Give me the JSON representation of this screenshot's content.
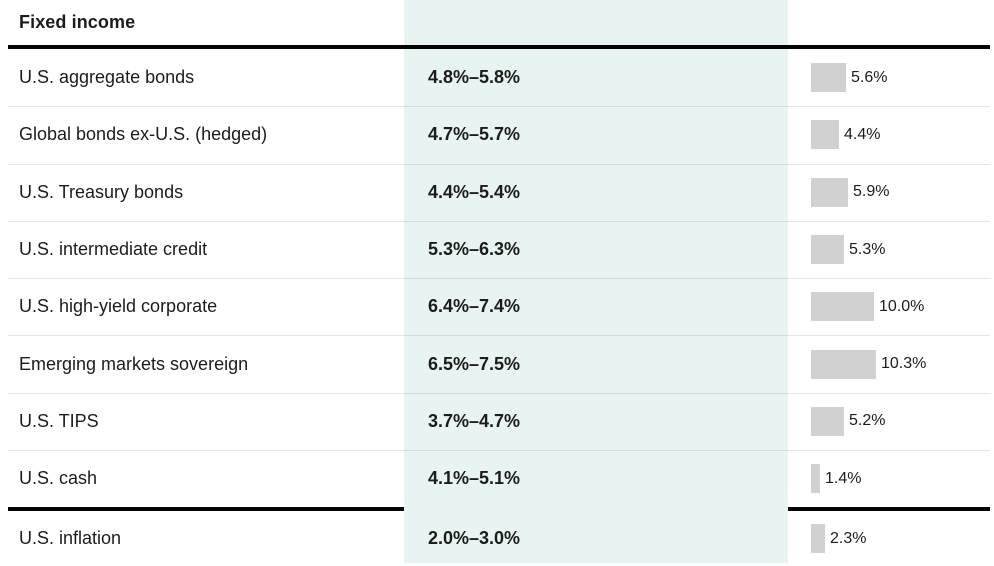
{
  "header": {
    "title": "Fixed income"
  },
  "colors": {
    "band": "#e7f4f2",
    "bar_fill": "#d1d1d1",
    "rule": "#050505",
    "text": "#1c1c1c"
  },
  "chart_data": {
    "type": "table",
    "title": "Fixed income",
    "note_bars": "third column is a horizontal bar per row, ~6.3px per percent",
    "rows": [
      {
        "label": "U.S. aggregate bonds",
        "range": "4.8%–5.8%",
        "value": 5.6,
        "value_label": "5.6%"
      },
      {
        "label": "Global bonds ex-U.S. (hedged)",
        "range": "4.7%–5.7%",
        "value": 4.4,
        "value_label": "4.4%"
      },
      {
        "label": "U.S. Treasury bonds",
        "range": "4.4%–5.4%",
        "value": 5.9,
        "value_label": "5.9%"
      },
      {
        "label": "U.S. intermediate credit",
        "range": "5.3%–6.3%",
        "value": 5.3,
        "value_label": "5.3%"
      },
      {
        "label": "U.S. high-yield corporate",
        "range": "6.4%–7.4%",
        "value": 10.0,
        "value_label": "10.0%"
      },
      {
        "label": "Emerging markets sovereign",
        "range": "6.5%–7.5%",
        "value": 10.3,
        "value_label": "10.3%"
      },
      {
        "label": "U.S. TIPS",
        "range": "3.7%–4.7%",
        "value": 5.2,
        "value_label": "5.2%"
      },
      {
        "label": "U.S. cash",
        "range": "4.1%–5.1%",
        "value": 1.4,
        "value_label": "1.4%"
      },
      {
        "label": "U.S. inflation",
        "range": "2.0%–3.0%",
        "value": 2.3,
        "value_label": "2.3%"
      }
    ]
  }
}
